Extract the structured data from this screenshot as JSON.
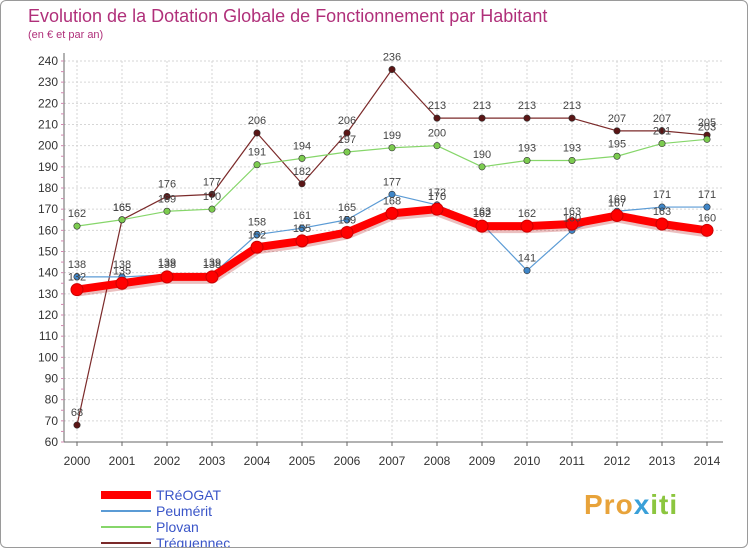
{
  "chart_data": {
    "type": "line",
    "title": "Evolution de la Dotation Globale de Fonctionnement par Habitant",
    "subtitle": "(en € et par an)",
    "xlabel": "",
    "ylabel": "",
    "ylim": [
      60,
      240
    ],
    "yticks": [
      60,
      70,
      80,
      90,
      100,
      110,
      120,
      130,
      140,
      150,
      160,
      170,
      180,
      190,
      200,
      210,
      220,
      230,
      240
    ],
    "categories": [
      "2000",
      "2001",
      "2002",
      "2003",
      "2004",
      "2005",
      "2006",
      "2007",
      "2008",
      "2009",
      "2010",
      "2011",
      "2012",
      "2013",
      "2014"
    ],
    "grid": true,
    "legend_position": "bottom-left",
    "series": [
      {
        "name": "Tréguennec",
        "color": "#7b2a2a",
        "marker": "#5a1515",
        "values": [
          68,
          165,
          176,
          177,
          206,
          182,
          206,
          236,
          213,
          213,
          213,
          213,
          207,
          207,
          205
        ]
      },
      {
        "name": "Plovan",
        "color": "#86d66a",
        "marker": "#7ccc4f",
        "values": [
          162,
          165,
          169,
          170,
          191,
          194,
          197,
          199,
          200,
          190,
          193,
          193,
          195,
          201,
          203
        ]
      },
      {
        "name": "Peumérit",
        "color": "#5b9bd5",
        "marker": "#3f86c8",
        "values": [
          138,
          138,
          139,
          139,
          158,
          161,
          165,
          177,
          172,
          163,
          141,
          160,
          169,
          171,
          171
        ]
      },
      {
        "name": "TRéOGAT",
        "color": "#ff0000",
        "marker": "#ff0000",
        "values": [
          132,
          135,
          138,
          138,
          152,
          155,
          159,
          168,
          170,
          162,
          162,
          163,
          167,
          163,
          160
        ]
      }
    ]
  },
  "legend": {
    "items": [
      {
        "label": "TRéOGAT",
        "color": "#ff0000"
      },
      {
        "label": "Peumérit",
        "color": "#5b9bd5"
      },
      {
        "label": "Plovan",
        "color": "#86d66a"
      },
      {
        "label": "Tréguennec",
        "color": "#7b2a2a"
      }
    ]
  },
  "logo": {
    "text": "Proxiti",
    "part1": "Pro",
    "part2": "x",
    "part3": "iti"
  }
}
